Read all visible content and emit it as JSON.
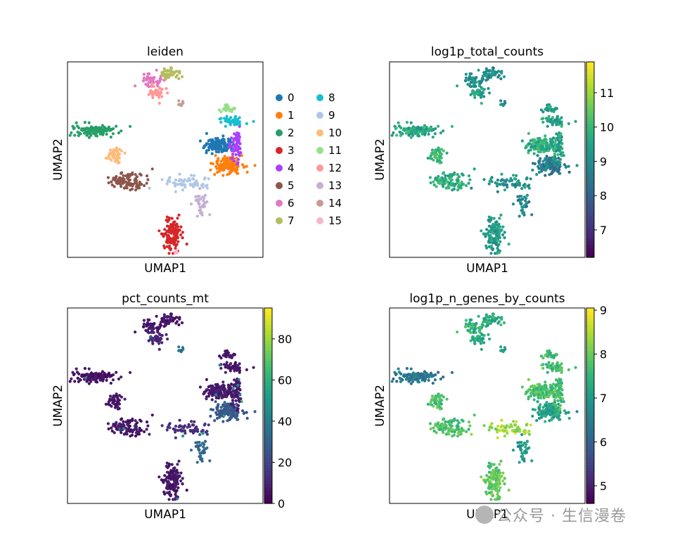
{
  "chart_data": [
    {
      "type": "scatter",
      "title": "leiden",
      "xlabel": "UMAP1",
      "ylabel": "UMAP2",
      "color_mode": "categorical",
      "legend_title": "",
      "legend_placement": "right",
      "categories": [
        "0",
        "1",
        "2",
        "3",
        "4",
        "5",
        "6",
        "7",
        "8",
        "9",
        "10",
        "11",
        "12",
        "13",
        "14",
        "15"
      ],
      "colors": [
        "#1f77b4",
        "#ff7f0e",
        "#279e68",
        "#d62728",
        "#aa40fc",
        "#8c564b",
        "#e377c2",
        "#b5bd61",
        "#17becf",
        "#aec7e8",
        "#ffbb78",
        "#98df8a",
        "#ff9896",
        "#c5b0d5",
        "#c49c94",
        "#f7b6d2"
      ]
    },
    {
      "type": "scatter",
      "title": "log1p_total_counts",
      "xlabel": "UMAP1",
      "ylabel": "UMAP2",
      "color_mode": "continuous",
      "colormap": "viridis",
      "vmin": 6.2,
      "vmax": 11.9,
      "colorbar_ticks": [
        7,
        8,
        9,
        10,
        11
      ]
    },
    {
      "type": "scatter",
      "title": "pct_counts_mt",
      "xlabel": "UMAP1",
      "ylabel": "UMAP2",
      "color_mode": "continuous",
      "colormap": "viridis",
      "vmin": 0,
      "vmax": 95,
      "colorbar_ticks": [
        0,
        20,
        40,
        60,
        80
      ]
    },
    {
      "type": "scatter",
      "title": "log1p_n_genes_by_counts",
      "xlabel": "UMAP1",
      "ylabel": "UMAP2",
      "color_mode": "continuous",
      "colormap": "viridis",
      "vmin": 4.6,
      "vmax": 9.05,
      "colorbar_ticks": [
        5,
        6,
        7,
        8,
        9
      ]
    }
  ],
  "clusters": [
    {
      "id": "0",
      "x": 5.8,
      "y": 6.0,
      "sx": 0.7,
      "sy": 0.32,
      "n": 150
    },
    {
      "id": "1",
      "x": 6.8,
      "y": 4.3,
      "sx": 0.7,
      "sy": 0.38,
      "n": 150
    },
    {
      "id": "2",
      "x": -6.0,
      "y": 7.2,
      "sx": 1.1,
      "sy": 0.22,
      "n": 110
    },
    {
      "id": "3",
      "x": 1.4,
      "y": -1.6,
      "sx": 0.45,
      "sy": 0.75,
      "n": 120
    },
    {
      "id": "4",
      "x": 7.5,
      "y": 6.0,
      "sx": 0.25,
      "sy": 0.7,
      "n": 60
    },
    {
      "id": "5",
      "x": -2.7,
      "y": 3.0,
      "sx": 0.9,
      "sy": 0.4,
      "n": 100
    },
    {
      "id": "6",
      "x": -0.5,
      "y": 11.5,
      "sx": 0.5,
      "sy": 0.25,
      "n": 50
    },
    {
      "id": "7",
      "x": 1.2,
      "y": 12.0,
      "sx": 0.5,
      "sy": 0.2,
      "n": 50
    },
    {
      "id": "8",
      "x": 7.2,
      "y": 8.0,
      "sx": 0.5,
      "sy": 0.22,
      "n": 40
    },
    {
      "id": "9",
      "x": 2.8,
      "y": 2.8,
      "sx": 1.2,
      "sy": 0.25,
      "n": 60
    },
    {
      "id": "10",
      "x": -3.9,
      "y": 5.0,
      "sx": 0.4,
      "sy": 0.4,
      "n": 45
    },
    {
      "id": "11",
      "x": 6.8,
      "y": 9.0,
      "sx": 0.4,
      "sy": 0.15,
      "n": 25
    },
    {
      "id": "12",
      "x": 0.0,
      "y": 10.4,
      "sx": 0.4,
      "sy": 0.3,
      "n": 35
    },
    {
      "id": "13",
      "x": 4.1,
      "y": 1.0,
      "sx": 0.3,
      "sy": 0.5,
      "n": 35
    },
    {
      "id": "14",
      "x": 2.2,
      "y": 9.5,
      "sx": 0.15,
      "sy": 0.1,
      "n": 10
    },
    {
      "id": "15",
      "x": 1.8,
      "y": -3.1,
      "sx": 0.1,
      "sy": 0.1,
      "n": 6
    }
  ],
  "umap_range": {
    "x": [
      -8.5,
      10.0
    ],
    "y": [
      -3.5,
      13.0
    ]
  },
  "watermark": {
    "text": "公众号 · 生信漫卷"
  }
}
